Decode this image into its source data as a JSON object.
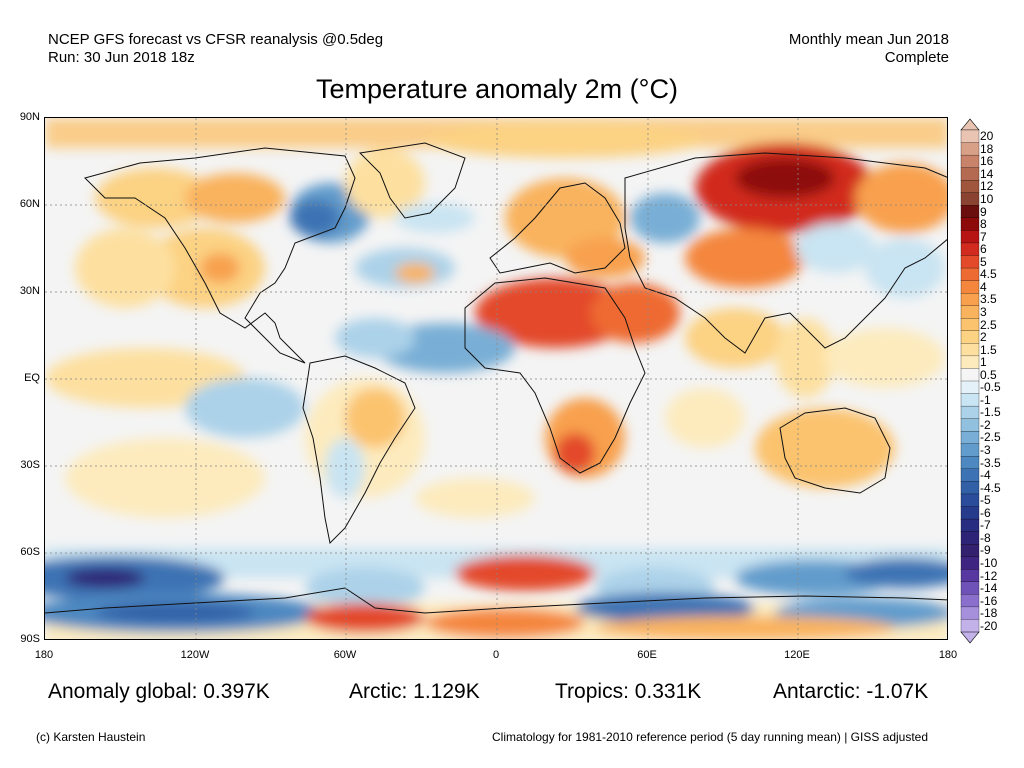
{
  "header": {
    "line1": "NCEP GFS forecast vs CFSR reanalysis @0.5deg",
    "line2": "Run: 30 Jun 2018 18z",
    "right1": "Monthly mean Jun 2018",
    "right2": "Complete"
  },
  "title": "Temperature anomaly 2m (°C)",
  "lat_labels": [
    "90N",
    "60N",
    "30N",
    "EQ",
    "30S",
    "60S",
    "90S"
  ],
  "lon_labels": [
    "180",
    "120W",
    "60W",
    "0",
    "60E",
    "120E",
    "180"
  ],
  "stats": {
    "global": "Anomaly global: 0.397K",
    "arctic": "Arctic: 1.129K",
    "tropics": "Tropics: 0.331K",
    "antarctic": "Antarctic: -1.07K"
  },
  "footer": {
    "credit": "(c) Karsten Haustein",
    "note": "Climatology for 1981-2010 reference period (5 day running mean) | GISS adjusted"
  },
  "colorbar": {
    "labels": [
      "20",
      "18",
      "16",
      "14",
      "12",
      "10",
      "9",
      "8",
      "7",
      "6",
      "5",
      "4.5",
      "4",
      "3.5",
      "3",
      "2.5",
      "2",
      "1.5",
      "1",
      "0.5",
      "-0.5",
      "-1",
      "-1.5",
      "-2",
      "-2.5",
      "-3",
      "-3.5",
      "-4",
      "-4.5",
      "-5",
      "-6",
      "-7",
      "-8",
      "-9",
      "-10",
      "-12",
      "-14",
      "-16",
      "-18",
      "-20"
    ],
    "colors": [
      "#e9c4b2",
      "#d9a088",
      "#c8836a",
      "#b46a50",
      "#9f563c",
      "#8a4330",
      "#6b0e0e",
      "#8d0a0a",
      "#b71414",
      "#d12b1f",
      "#e34a2a",
      "#ee6a33",
      "#f4863e",
      "#f8a04e",
      "#f9b25d",
      "#fbc36e",
      "#fcd283",
      "#fde0a0",
      "#fdebbe",
      "#f5f5f5",
      "#e4f1f8",
      "#c9e4f2",
      "#acd2e9",
      "#92c1e0",
      "#79afd6",
      "#629ccc",
      "#4d88c1",
      "#3d73b4",
      "#3260a7",
      "#2b4c9b",
      "#273b8d",
      "#292d82",
      "#2e2477",
      "#33206f",
      "#3f2582",
      "#5737a0",
      "#6f52b8",
      "#8a70cc",
      "#a68fdb",
      "#c3b2ea"
    ]
  }
}
